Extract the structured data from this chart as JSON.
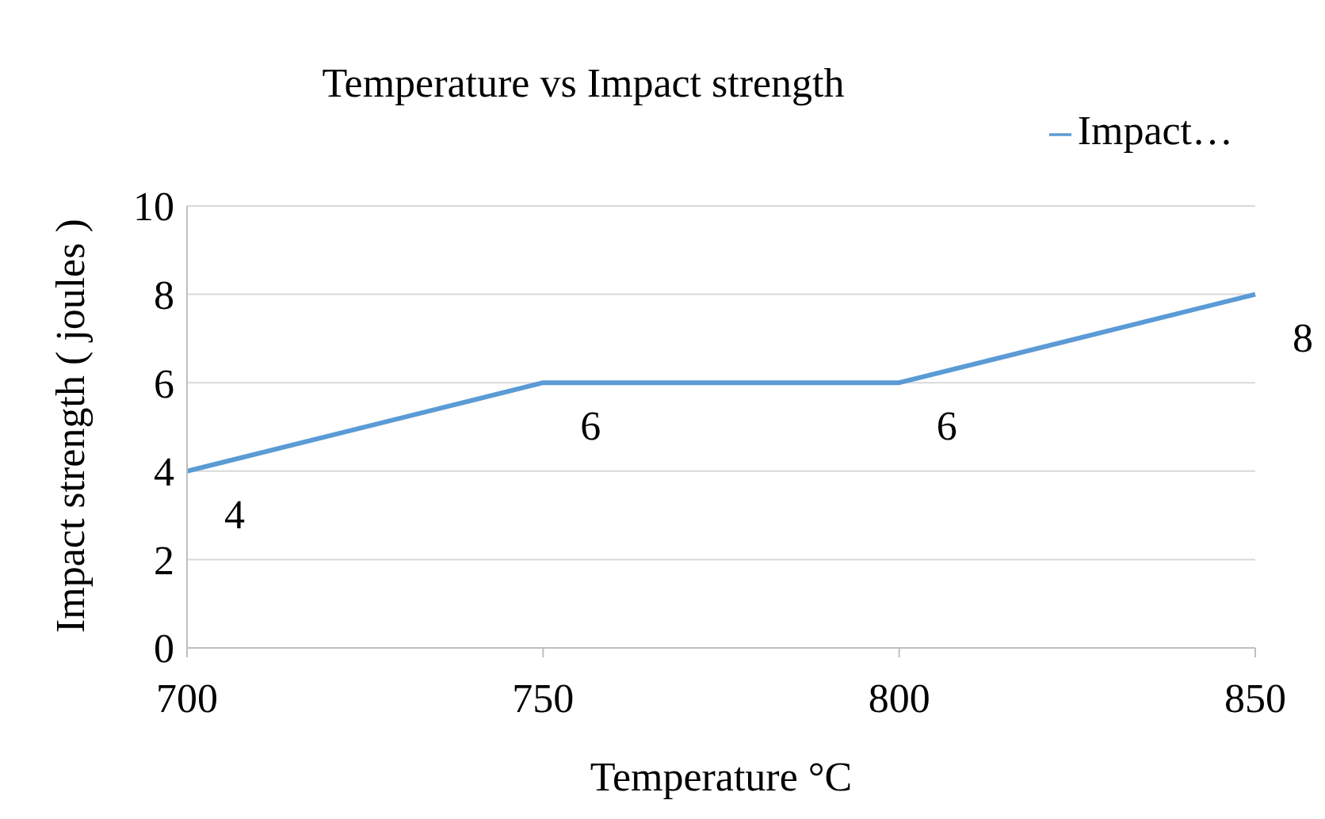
{
  "chart_data": {
    "type": "line",
    "title": "Temperature vs Impact strength",
    "xlabel": "Temperature °C",
    "ylabel": "Impact strength ( joules )",
    "categories": [
      "700",
      "750",
      "800",
      "850"
    ],
    "series": [
      {
        "name": "Impact…",
        "color": "#5b9bd5",
        "values": [
          4,
          6,
          6,
          8
        ]
      }
    ],
    "ylim": [
      0,
      10
    ],
    "yticks": [
      0,
      2,
      4,
      6,
      8,
      10
    ],
    "grid": "y",
    "legend": "top right",
    "data_labels": true,
    "marker": "none"
  }
}
